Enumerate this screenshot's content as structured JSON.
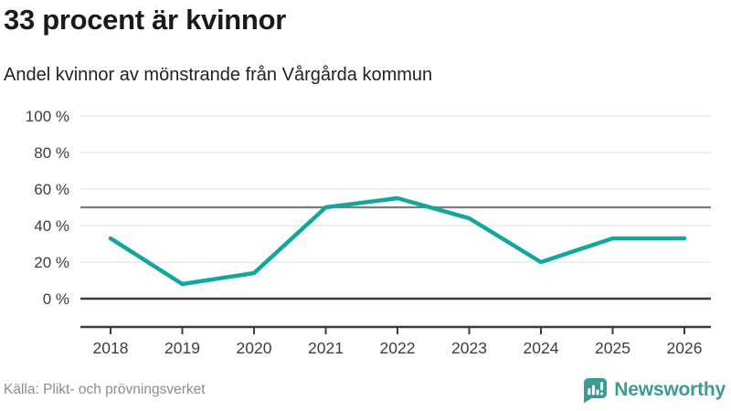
{
  "header": {
    "title": "33 procent är kvinnor",
    "subtitle": "Andel kvinnor av mönstrande från Vårgårda kommun"
  },
  "chart_data": {
    "type": "line",
    "title": "33 procent är kvinnor",
    "subtitle": "Andel kvinnor av mönstrande från Vårgårda kommun",
    "x": [
      "2018",
      "2019",
      "2020",
      "2021",
      "2022",
      "2023",
      "2024",
      "2025",
      "2026"
    ],
    "series": [
      {
        "name": "Andel kvinnor av mönstrande",
        "values": [
          33,
          8,
          14,
          50,
          55,
          44,
          20,
          33,
          33
        ]
      }
    ],
    "xlabel": "",
    "ylabel": "",
    "ylim": [
      0,
      100
    ],
    "yticks": [
      0,
      20,
      40,
      60,
      80,
      100
    ],
    "ytick_labels": [
      "0 %",
      "20 %",
      "40 %",
      "60 %",
      "80 %",
      "100 %"
    ],
    "reference_line": 50,
    "grid": true,
    "legend": "none",
    "colors": {
      "line": "#12a79d",
      "grid": "#e3e3e3",
      "axis": "#3c3c3c",
      "zero_line": "#3c3c3c",
      "reference": "#7c7c7c",
      "tick_label": "#3d3d3d"
    }
  },
  "footer": {
    "source": "Källa: Plikt- och prövningsverket",
    "brand": {
      "name": "Newsworthy",
      "icon": "bar-chart-speech-bubble-icon",
      "color": "#3b9a92"
    }
  }
}
